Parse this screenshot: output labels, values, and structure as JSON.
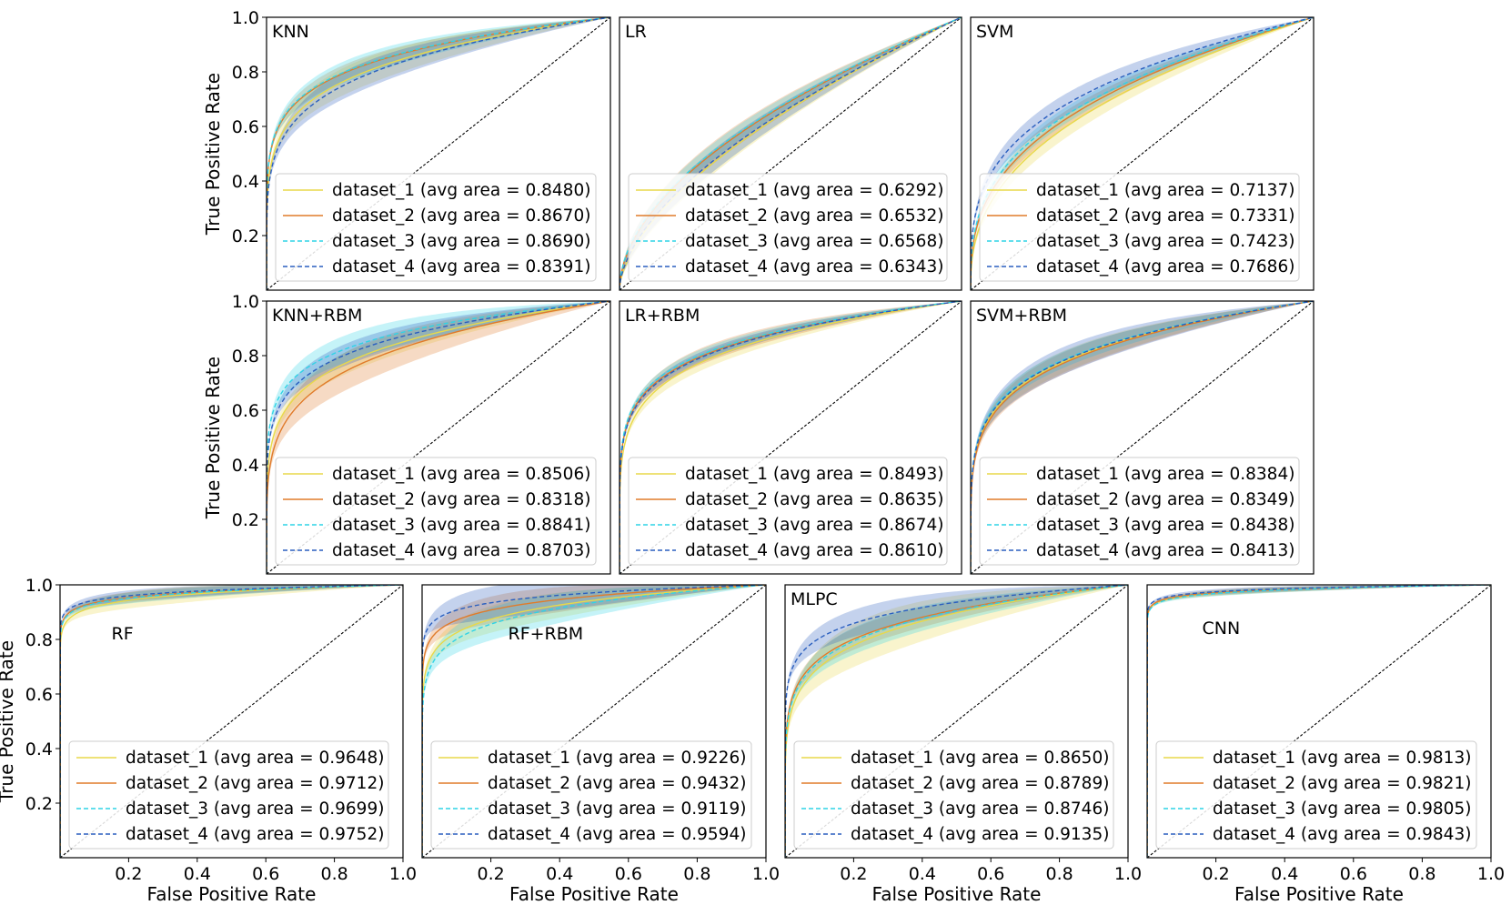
{
  "figure": {
    "xlabel": "False Positive Rate",
    "ylabel": "True Positive Rate"
  },
  "chart_data": [
    {
      "type": "line",
      "title": "KNN",
      "xlim": [
        0,
        1
      ],
      "ylim": [
        0,
        1
      ],
      "x_ticks": [],
      "y_ticks": [
        "0.2",
        "0.4",
        "0.6",
        "0.8",
        "1.0"
      ],
      "show_xlabel": false,
      "show_ylabel": true,
      "series": [
        {
          "name": "dataset_1 (avg area = 0.8480)",
          "auc": 0.848,
          "color": "#e8d94a",
          "style": "solid",
          "band": 0.05
        },
        {
          "name": "dataset_2 (avg area = 0.8670)",
          "auc": 0.867,
          "color": "#e07b2a",
          "style": "solid",
          "band": 0.03
        },
        {
          "name": "dataset_3 (avg area = 0.8690)",
          "auc": 0.869,
          "color": "#2fd3e6",
          "style": "dashed",
          "band": 0.04
        },
        {
          "name": "dataset_4 (avg area = 0.8391)",
          "auc": 0.8391,
          "color": "#2a5fbf",
          "style": "dashed",
          "band": 0.05
        }
      ]
    },
    {
      "type": "line",
      "title": "LR",
      "xlim": [
        0,
        1
      ],
      "ylim": [
        0,
        1
      ],
      "x_ticks": [],
      "y_ticks": [],
      "show_xlabel": false,
      "show_ylabel": false,
      "series": [
        {
          "name": "dataset_1 (avg area = 0.6292)",
          "auc": 0.6292,
          "color": "#e8d94a",
          "style": "solid",
          "band": 0.04
        },
        {
          "name": "dataset_2 (avg area = 0.6532)",
          "auc": 0.6532,
          "color": "#e07b2a",
          "style": "solid",
          "band": 0.04
        },
        {
          "name": "dataset_3 (avg area = 0.6568)",
          "auc": 0.6568,
          "color": "#2fd3e6",
          "style": "dashed",
          "band": 0.03
        },
        {
          "name": "dataset_4 (avg area = 0.6343)",
          "auc": 0.6343,
          "color": "#2a5fbf",
          "style": "dashed",
          "band": 0.04
        }
      ]
    },
    {
      "type": "line",
      "title": "SVM",
      "xlim": [
        0,
        1
      ],
      "ylim": [
        0,
        1
      ],
      "x_ticks": [],
      "y_ticks": [],
      "show_xlabel": false,
      "show_ylabel": false,
      "series": [
        {
          "name": "dataset_1 (avg area = 0.7137)",
          "auc": 0.7137,
          "color": "#e8d94a",
          "style": "solid",
          "band": 0.04
        },
        {
          "name": "dataset_2 (avg area = 0.7331)",
          "auc": 0.7331,
          "color": "#e07b2a",
          "style": "solid",
          "band": 0.03
        },
        {
          "name": "dataset_3 (avg area = 0.7423)",
          "auc": 0.7423,
          "color": "#2fd3e6",
          "style": "dashed",
          "band": 0.03
        },
        {
          "name": "dataset_4 (avg area = 0.7686)",
          "auc": 0.7686,
          "color": "#2a5fbf",
          "style": "dashed",
          "band": 0.04
        }
      ]
    },
    {
      "type": "line",
      "title": "KNN+RBM",
      "xlim": [
        0,
        1
      ],
      "ylim": [
        0,
        1
      ],
      "x_ticks": [],
      "y_ticks": [
        "0.2",
        "0.4",
        "0.6",
        "0.8",
        "1.0"
      ],
      "show_xlabel": false,
      "show_ylabel": true,
      "series": [
        {
          "name": "dataset_1 (avg area = 0.8506)",
          "auc": 0.8506,
          "color": "#e8d94a",
          "style": "solid",
          "band": 0.04
        },
        {
          "name": "dataset_2 (avg area = 0.8318)",
          "auc": 0.8318,
          "color": "#e07b2a",
          "style": "solid",
          "band": 0.07
        },
        {
          "name": "dataset_3 (avg area = 0.8841)",
          "auc": 0.8841,
          "color": "#2fd3e6",
          "style": "dashed",
          "band": 0.05
        },
        {
          "name": "dataset_4 (avg area = 0.8703)",
          "auc": 0.8703,
          "color": "#2a5fbf",
          "style": "dashed",
          "band": 0.04
        }
      ]
    },
    {
      "type": "line",
      "title": "LR+RBM",
      "xlim": [
        0,
        1
      ],
      "ylim": [
        0,
        1
      ],
      "x_ticks": [],
      "y_ticks": [],
      "show_xlabel": false,
      "show_ylabel": false,
      "series": [
        {
          "name": "dataset_1 (avg area = 0.8493)",
          "auc": 0.8493,
          "color": "#e8d94a",
          "style": "solid",
          "band": 0.03
        },
        {
          "name": "dataset_2 (avg area = 0.8635)",
          "auc": 0.8635,
          "color": "#e07b2a",
          "style": "solid",
          "band": 0.03
        },
        {
          "name": "dataset_3 (avg area = 0.8674)",
          "auc": 0.8674,
          "color": "#2fd3e6",
          "style": "dashed",
          "band": 0.02
        },
        {
          "name": "dataset_4 (avg area = 0.8610)",
          "auc": 0.861,
          "color": "#2a5fbf",
          "style": "dashed",
          "band": 0.02
        }
      ]
    },
    {
      "type": "line",
      "title": "SVM+RBM",
      "xlim": [
        0,
        1
      ],
      "ylim": [
        0,
        1
      ],
      "x_ticks": [],
      "y_ticks": [],
      "show_xlabel": false,
      "show_ylabel": false,
      "series": [
        {
          "name": "dataset_1 (avg area = 0.8384)",
          "auc": 0.8384,
          "color": "#e8d94a",
          "style": "solid",
          "band": 0.04
        },
        {
          "name": "dataset_2 (avg area = 0.8349)",
          "auc": 0.8349,
          "color": "#e07b2a",
          "style": "solid",
          "band": 0.04
        },
        {
          "name": "dataset_3 (avg area = 0.8438)",
          "auc": 0.8438,
          "color": "#2fd3e6",
          "style": "dashed",
          "band": 0.03
        },
        {
          "name": "dataset_4 (avg area = 0.8413)",
          "auc": 0.8413,
          "color": "#2a5fbf",
          "style": "dashed",
          "band": 0.05
        }
      ]
    },
    {
      "type": "line",
      "title": "RF",
      "xlim": [
        0,
        1
      ],
      "ylim": [
        0,
        1
      ],
      "x_ticks": [
        "0.2",
        "0.4",
        "0.6",
        "0.8",
        "1.0"
      ],
      "y_ticks": [
        "0.2",
        "0.4",
        "0.6",
        "0.8",
        "1.0"
      ],
      "show_xlabel": true,
      "show_ylabel": true,
      "series": [
        {
          "name": "dataset_1 (avg area = 0.9648)",
          "auc": 0.9648,
          "color": "#e8d94a",
          "style": "solid",
          "band": 0.03
        },
        {
          "name": "dataset_2 (avg area = 0.9712)",
          "auc": 0.9712,
          "color": "#e07b2a",
          "style": "solid",
          "band": 0.02
        },
        {
          "name": "dataset_3 (avg area = 0.9699)",
          "auc": 0.9699,
          "color": "#2fd3e6",
          "style": "dashed",
          "band": 0.02
        },
        {
          "name": "dataset_4 (avg area = 0.9752)",
          "auc": 0.9752,
          "color": "#2a5fbf",
          "style": "dashed",
          "band": 0.02
        }
      ]
    },
    {
      "type": "line",
      "title": "RF+RBM",
      "xlim": [
        0,
        1
      ],
      "ylim": [
        0,
        1
      ],
      "x_ticks": [
        "0.2",
        "0.4",
        "0.6",
        "0.8",
        "1.0"
      ],
      "y_ticks": [],
      "show_xlabel": true,
      "show_ylabel": false,
      "series": [
        {
          "name": "dataset_1 (avg area = 0.9226)",
          "auc": 0.9226,
          "color": "#e8d94a",
          "style": "solid",
          "band": 0.05
        },
        {
          "name": "dataset_2 (avg area = 0.9432)",
          "auc": 0.9432,
          "color": "#e07b2a",
          "style": "solid",
          "band": 0.05
        },
        {
          "name": "dataset_3 (avg area = 0.9119)",
          "auc": 0.9119,
          "color": "#2fd3e6",
          "style": "dashed",
          "band": 0.06
        },
        {
          "name": "dataset_4 (avg area = 0.9594)",
          "auc": 0.9594,
          "color": "#2a5fbf",
          "style": "dashed",
          "band": 0.06
        }
      ]
    },
    {
      "type": "line",
      "title": "MLPC",
      "xlim": [
        0,
        1
      ],
      "ylim": [
        0,
        1
      ],
      "x_ticks": [
        "0.2",
        "0.4",
        "0.6",
        "0.8",
        "1.0"
      ],
      "y_ticks": [],
      "show_xlabel": true,
      "show_ylabel": false,
      "series": [
        {
          "name": "dataset_1 (avg area = 0.8650)",
          "auc": 0.865,
          "color": "#e8d94a",
          "style": "solid",
          "band": 0.08
        },
        {
          "name": "dataset_2 (avg area = 0.8789)",
          "auc": 0.8789,
          "color": "#e07b2a",
          "style": "solid",
          "band": 0.04
        },
        {
          "name": "dataset_3 (avg area = 0.8746)",
          "auc": 0.8746,
          "color": "#2fd3e6",
          "style": "dashed",
          "band": 0.05
        },
        {
          "name": "dataset_4 (avg area = 0.9135)",
          "auc": 0.9135,
          "color": "#2a5fbf",
          "style": "dashed",
          "band": 0.05
        }
      ]
    },
    {
      "type": "line",
      "title": "CNN",
      "xlim": [
        0,
        1
      ],
      "ylim": [
        0,
        1
      ],
      "x_ticks": [
        "0.2",
        "0.4",
        "0.6",
        "0.8",
        "1.0"
      ],
      "y_ticks": [],
      "show_xlabel": true,
      "show_ylabel": false,
      "series": [
        {
          "name": "dataset_1 (avg area = 0.9813)",
          "auc": 0.9813,
          "color": "#e8d94a",
          "style": "solid",
          "band": 0.01
        },
        {
          "name": "dataset_2 (avg area = 0.9821)",
          "auc": 0.9821,
          "color": "#e07b2a",
          "style": "solid",
          "band": 0.01
        },
        {
          "name": "dataset_3 (avg area = 0.9805)",
          "auc": 0.9805,
          "color": "#2fd3e6",
          "style": "dashed",
          "band": 0.01
        },
        {
          "name": "dataset_4 (avg area = 0.9843)",
          "auc": 0.9843,
          "color": "#2a5fbf",
          "style": "dashed",
          "band": 0.01
        }
      ]
    }
  ]
}
